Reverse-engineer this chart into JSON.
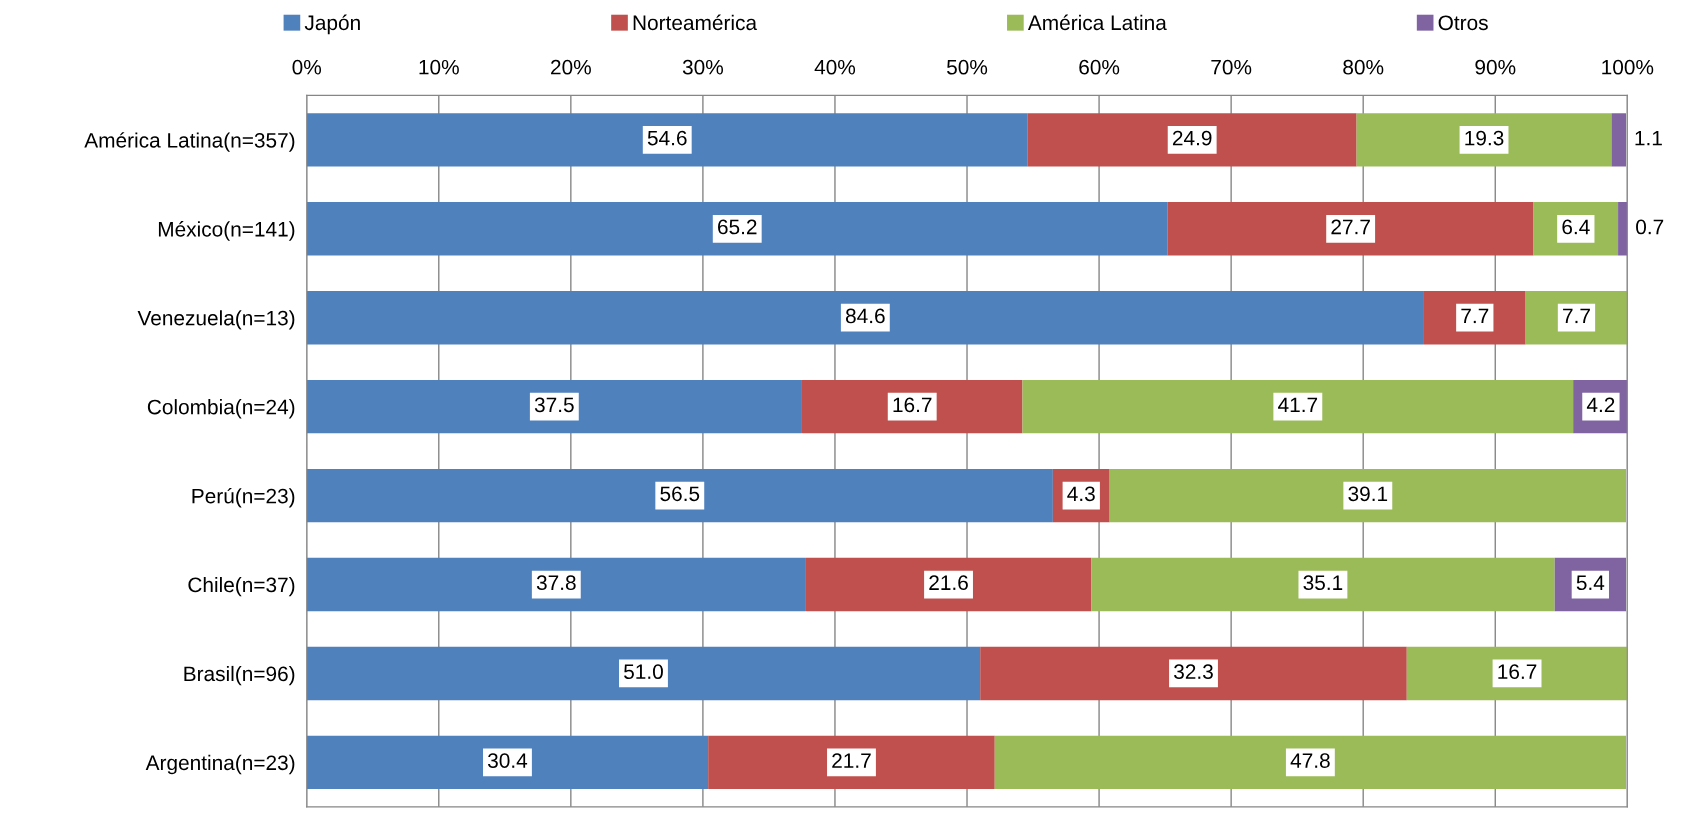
{
  "chart_data": {
    "type": "bar",
    "orientation": "horizontal",
    "stacked": true,
    "categories": [
      "América Latina(n=357)",
      "México(n=141)",
      "Venezuela(n=13)",
      "Colombia(n=24)",
      "Perú(n=23)",
      "Chile(n=37)",
      "Brasil(n=96)",
      "Argentina(n=23)"
    ],
    "series": [
      {
        "name": "Japón",
        "color": "#4f81bd",
        "values": [
          54.6,
          65.2,
          84.6,
          37.5,
          56.5,
          37.8,
          51.0,
          30.4
        ],
        "value_labels": [
          "54.6",
          "65.2",
          "84.6",
          "37.5",
          "56.5",
          "37.8",
          "51.0",
          "30.4"
        ]
      },
      {
        "name": "Norteamérica",
        "color": "#c0504d",
        "values": [
          24.9,
          27.7,
          7.7,
          16.7,
          4.3,
          21.6,
          32.3,
          21.7
        ],
        "value_labels": [
          "24.9",
          "27.7",
          "7.7",
          "16.7",
          "4.3",
          "21.6",
          "32.3",
          "21.7"
        ]
      },
      {
        "name": "América Latina",
        "color": "#9bbb59",
        "values": [
          19.3,
          6.4,
          7.7,
          41.7,
          39.1,
          35.1,
          16.7,
          47.8
        ],
        "value_labels": [
          "19.3",
          "6.4",
          "7.7",
          "41.7",
          "39.1",
          "35.1",
          "16.7",
          "47.8"
        ]
      },
      {
        "name": "Otros",
        "color": "#8064a2",
        "values": [
          1.1,
          0.7,
          0,
          4.2,
          0,
          5.4,
          0,
          0
        ],
        "value_labels": [
          "1.1",
          "0.7",
          null,
          "4.2",
          null,
          "5.4",
          null,
          null
        ]
      }
    ],
    "xlim": [
      0,
      100
    ],
    "xticks": [
      {
        "value": 0,
        "label": "0%"
      },
      {
        "value": 10,
        "label": "10%"
      },
      {
        "value": 20,
        "label": "20%"
      },
      {
        "value": 30,
        "label": "30%"
      },
      {
        "value": 40,
        "label": "40%"
      },
      {
        "value": 50,
        "label": "50%"
      },
      {
        "value": 60,
        "label": "60%"
      },
      {
        "value": 70,
        "label": "70%"
      },
      {
        "value": 80,
        "label": "80%"
      },
      {
        "value": 90,
        "label": "90%"
      },
      {
        "value": 100,
        "label": "100%"
      }
    ],
    "grid": "x",
    "legend": "top"
  }
}
